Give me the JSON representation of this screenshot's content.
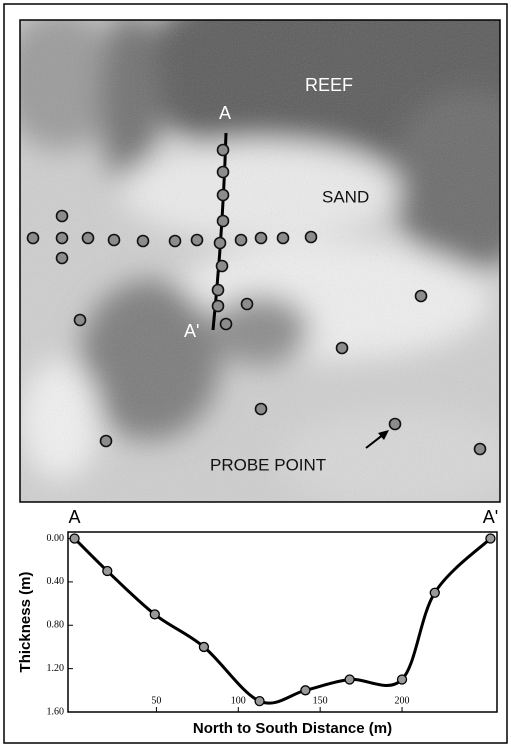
{
  "photo": {
    "reef": "REEF",
    "sand": "SAND",
    "a": "A",
    "a_prime": "A'",
    "probe": "PROBE POINT"
  },
  "chart_data": {
    "type": "line",
    "end_labels": [
      "A",
      "A'"
    ],
    "x_label": "North to South Distance (m)",
    "y_label": "Thickness (m)",
    "x": [
      0,
      20,
      49,
      79,
      113,
      141,
      168,
      200,
      220,
      254
    ],
    "series": [
      {
        "color": "#000000",
        "marker_color": "#999999",
        "values": [
          0,
          0.3,
          0.7,
          1.0,
          1.5,
          1.4,
          1.3,
          1.3,
          0.5,
          0
        ]
      }
    ],
    "xlim": [
      -4,
      258
    ],
    "xticks": [
      50,
      100,
      150,
      200
    ],
    "ylim": [
      1.6,
      -0.06
    ],
    "yticks": [
      {
        "value": 0,
        "label": "0.00"
      },
      {
        "value": 0.4,
        "label": "0.40"
      },
      {
        "value": 0.8,
        "label": "0.80"
      },
      {
        "value": 1.2,
        "label": "1.20"
      },
      {
        "value": 1.6,
        "label": "1.60"
      }
    ],
    "smooth": true
  }
}
